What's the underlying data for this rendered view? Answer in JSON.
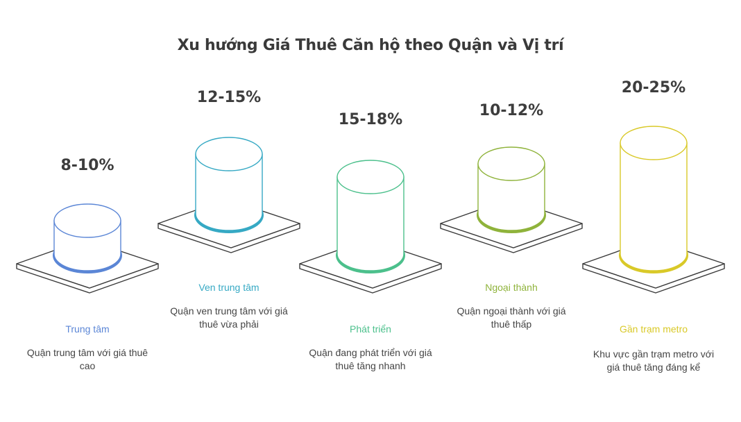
{
  "title": "Xu hướng Giá Thuê Căn hộ theo Quận và Vị trí",
  "items": [
    {
      "percent": "8-10%",
      "label": "Trung tâm",
      "description": "Quận trung tâm với giá thuê cao",
      "color": "#5b86d6"
    },
    {
      "percent": "12-15%",
      "label": "Ven trung tâm",
      "description": "Quận ven trung tâm với giá thuê vừa phải",
      "color": "#36a9c4"
    },
    {
      "percent": "15-18%",
      "label": "Phát triển",
      "description": "Quận đang phát triển với giá thuê tăng nhanh",
      "color": "#4cc08c"
    },
    {
      "percent": "10-12%",
      "label": "Ngoại thành",
      "description": "Quận ngoại thành với giá thuê thấp",
      "color": "#8fb33b"
    },
    {
      "percent": "20-25%",
      "label": "Gần trạm metro",
      "description": "Khu vực gần trạm metro với giá thuê tăng đáng kể",
      "color": "#d9c928"
    }
  ]
}
